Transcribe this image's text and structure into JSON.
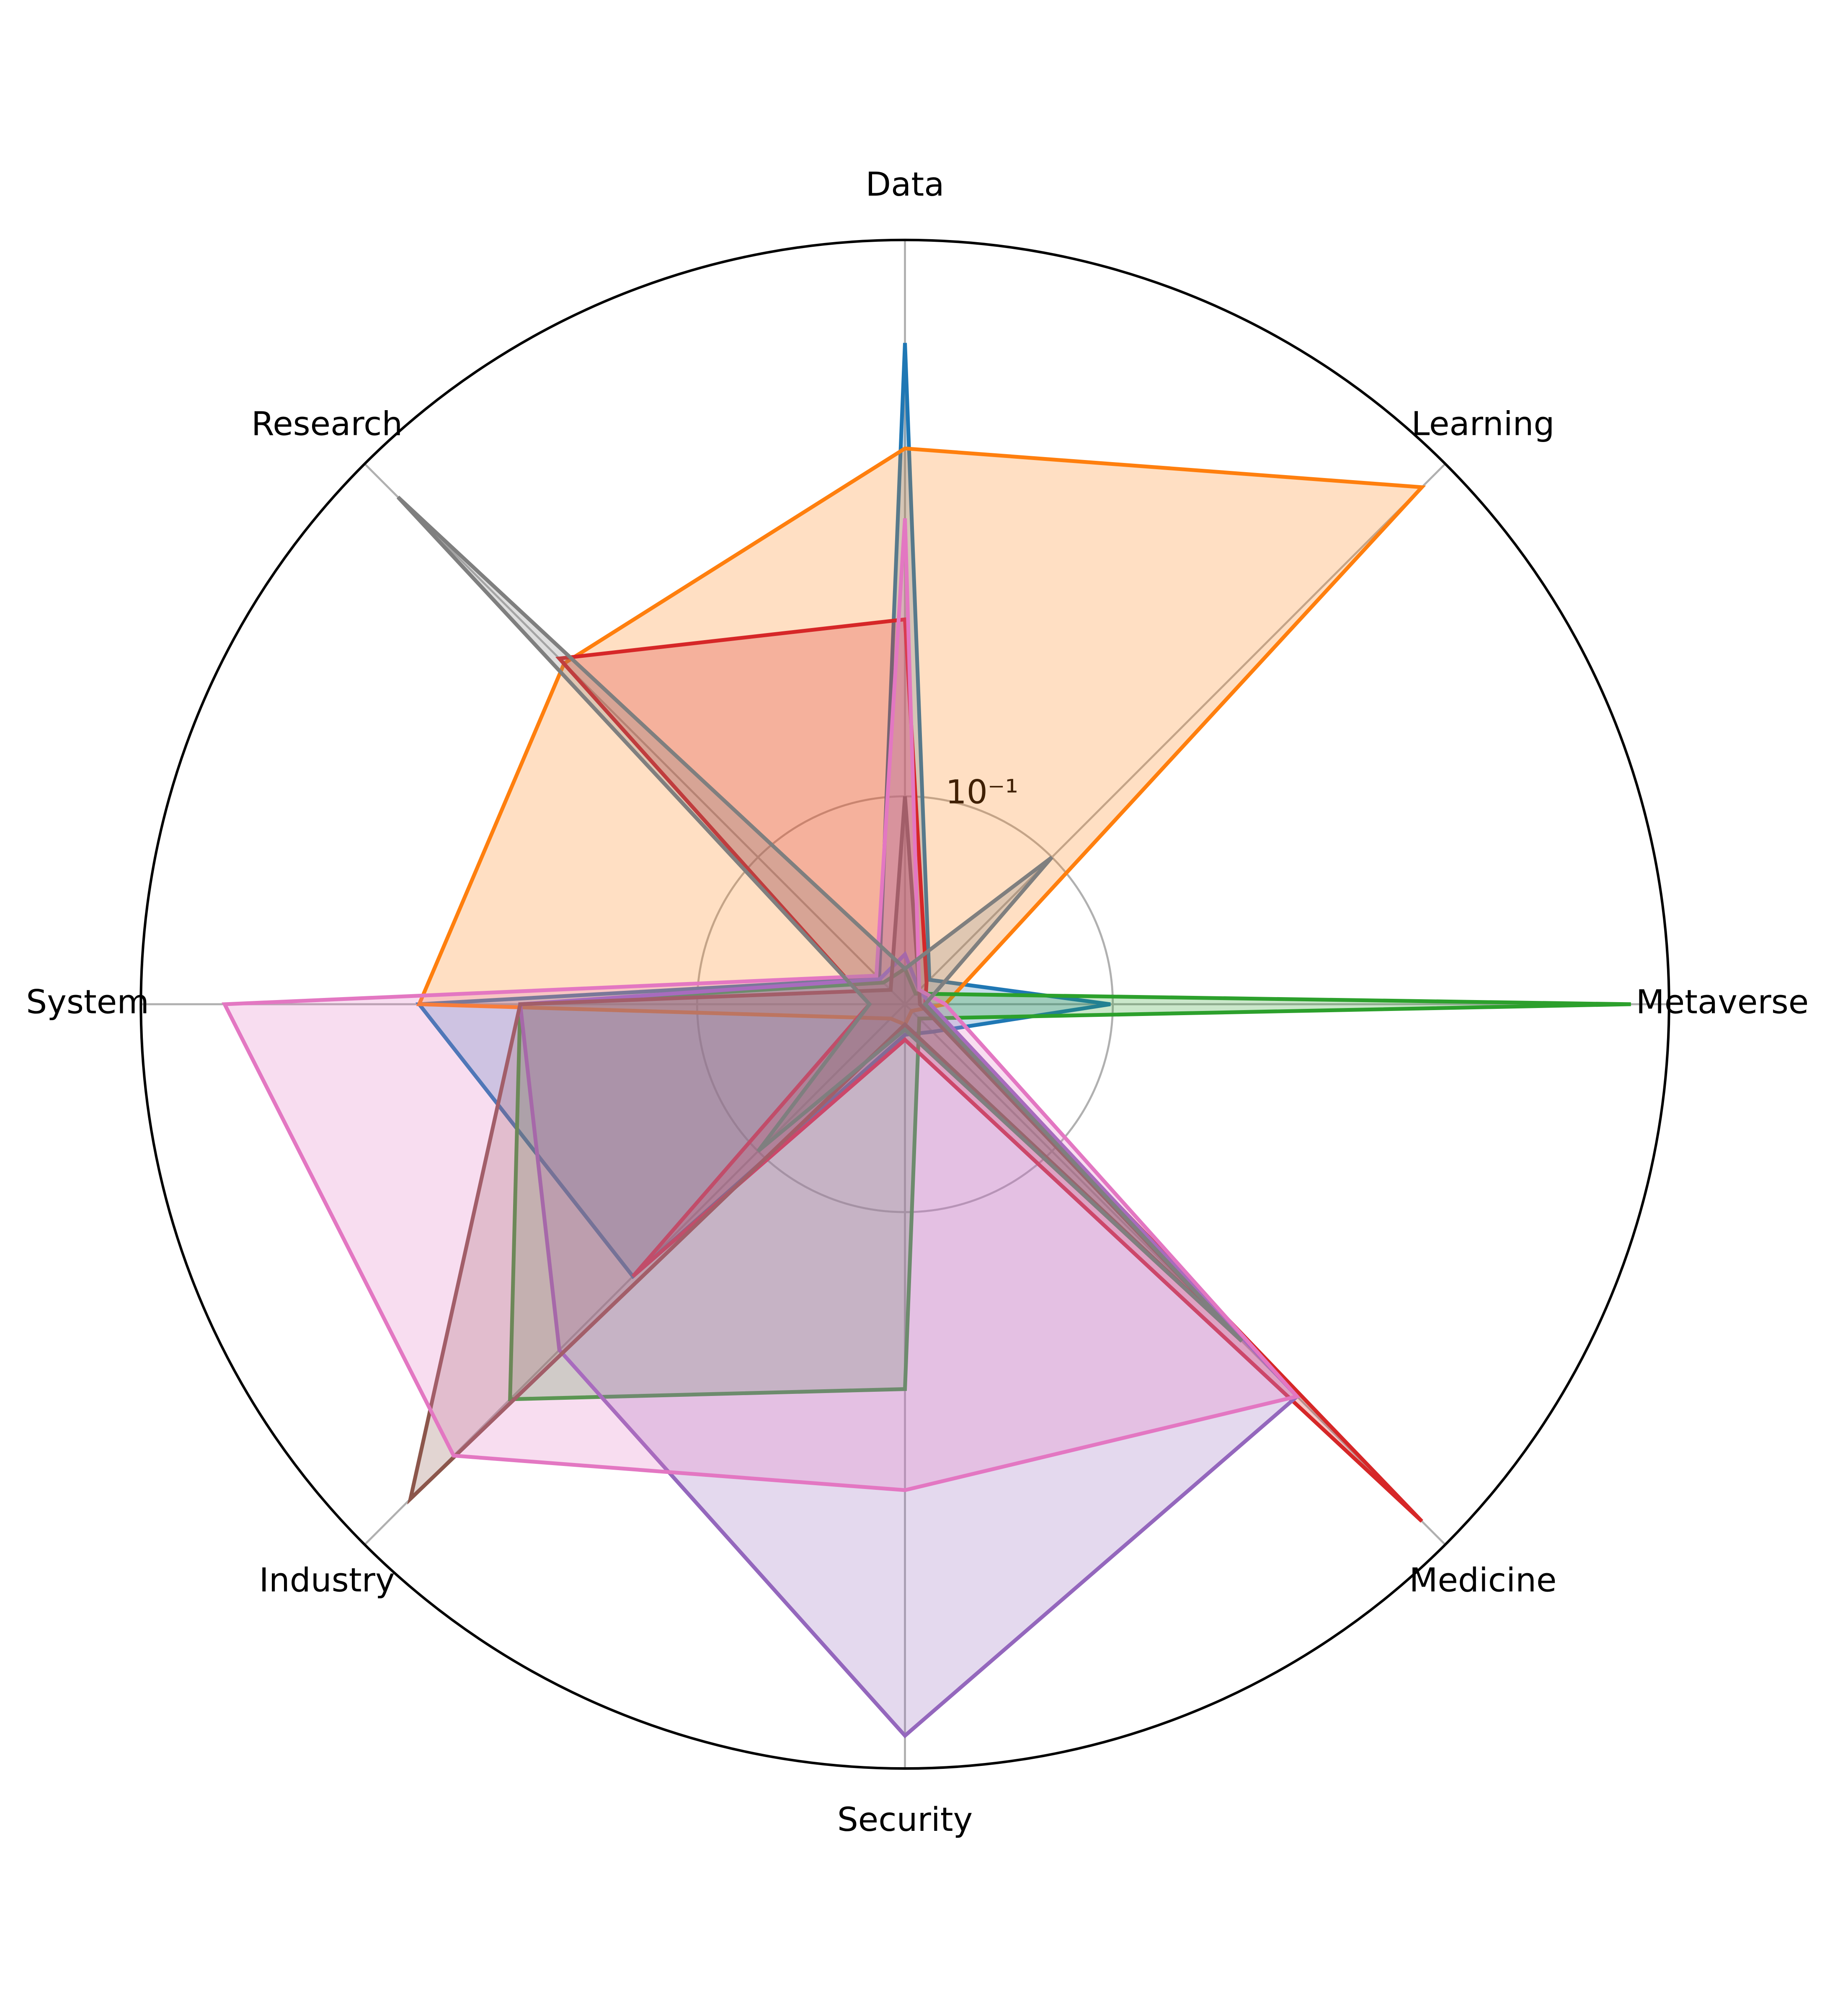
{
  "chart_data": {
    "type": "radar",
    "categories": [
      "Data",
      "Learning",
      "Metaverse",
      "Medicine",
      "Security",
      "Industry",
      "System",
      "Research"
    ],
    "log_scale": true,
    "grid": true,
    "ylim": [
      0.0423,
      1
    ],
    "yticks": [
      {
        "value": 0.1,
        "label": "10⁻¹"
      }
    ],
    "series": [
      {
        "color": "#1f77b4",
        "values": [
          0.653,
          0.0488,
          0.099,
          0.0497,
          0.048,
          0.208,
          0.316,
          0.0492
        ]
      },
      {
        "color": "#ff7f0e",
        "values": [
          0.422,
          0.872,
          0.05,
          0.044,
          0.046,
          0.046,
          0.316,
          0.311
        ]
      },
      {
        "color": "#2ca02c",
        "values": [
          0.049,
          0.045,
          0.854,
          0.046,
          0.208,
          0.427,
          0.208,
          0.048
        ]
      },
      {
        "color": "#d62728",
        "values": [
          0.208,
          0.048,
          0.046,
          0.872,
          0.049,
          0.208,
          0.049,
          0.32
        ]
      },
      {
        "color": "#9467bd",
        "values": [
          0.052,
          0.046,
          0.047,
          0.42,
          0.873,
          0.32,
          0.208,
          0.049
        ]
      },
      {
        "color": "#8c564b",
        "values": [
          0.1,
          0.046,
          0.045,
          0.304,
          0.046,
          0.765,
          0.208,
          0.046
        ]
      },
      {
        "color": "#e377c2",
        "values": [
          0.316,
          0.046,
          0.05,
          0.42,
          0.316,
          0.594,
          0.707,
          0.05
        ]
      },
      {
        "color": "#7f7f7f",
        "values": [
          0.049,
          0.1,
          0.046,
          0.304,
          0.047,
          0.1,
          0.049,
          0.823
        ]
      }
    ]
  }
}
